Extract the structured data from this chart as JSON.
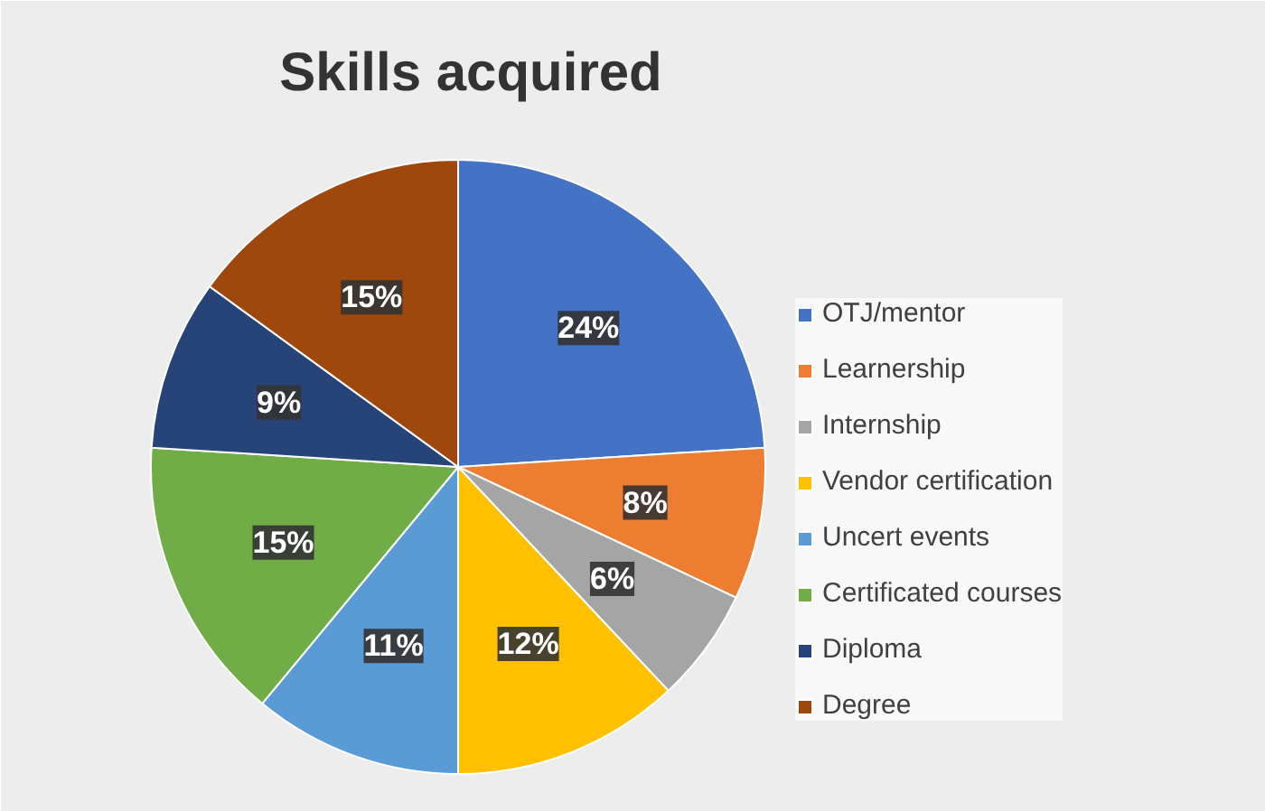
{
  "chart_data": {
    "type": "pie",
    "title": "Skills acquired",
    "categories": [
      "OTJ/mentor",
      "Learnership",
      "Internship",
      "Vendor certification",
      "Uncert events",
      "Certificated courses",
      "Diploma",
      "Degree"
    ],
    "values": [
      24,
      8,
      6,
      12,
      11,
      15,
      9,
      15
    ],
    "colors": [
      "#4472c4",
      "#ed7d31",
      "#a5a5a5",
      "#ffc000",
      "#5b9bd5",
      "#70ad47",
      "#264478",
      "#9e480e"
    ],
    "value_labels": [
      "24%",
      "8%",
      "6%",
      "12%",
      "11%",
      "15%",
      "9%",
      "15%"
    ],
    "legend": "right"
  }
}
